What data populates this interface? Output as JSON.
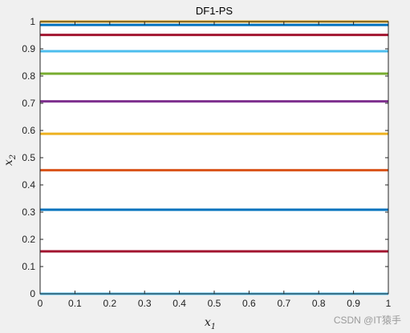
{
  "chart_data": {
    "type": "line",
    "title": "DF1-PS",
    "xlabel": {
      "base": "x",
      "sub": "1"
    },
    "ylabel": {
      "base": "x",
      "sub": "2"
    },
    "xlim": [
      0,
      1
    ],
    "ylim": [
      0,
      1
    ],
    "x_ticks": [
      "0",
      "0.1",
      "0.2",
      "0.3",
      "0.4",
      "0.5",
      "0.6",
      "0.7",
      "0.8",
      "0.9",
      "1"
    ],
    "y_ticks": [
      "0",
      "0.1",
      "0.2",
      "0.3",
      "0.4",
      "0.5",
      "0.6",
      "0.7",
      "0.8",
      "0.9",
      "1"
    ],
    "grid": false,
    "series": [
      {
        "x": [
          0,
          1
        ],
        "y": [
          1.0,
          1.0
        ],
        "color": "#EDB120"
      },
      {
        "x": [
          0,
          1
        ],
        "y": [
          0.988,
          0.988
        ],
        "color": "#0072BD"
      },
      {
        "x": [
          0,
          1
        ],
        "y": [
          0.951,
          0.951
        ],
        "color": "#A2142F"
      },
      {
        "x": [
          0,
          1
        ],
        "y": [
          0.891,
          0.891
        ],
        "color": "#4DBEEE"
      },
      {
        "x": [
          0,
          1
        ],
        "y": [
          0.809,
          0.809
        ],
        "color": "#77AC30"
      },
      {
        "x": [
          0,
          1
        ],
        "y": [
          0.707,
          0.707
        ],
        "color": "#7E2F8E"
      },
      {
        "x": [
          0,
          1
        ],
        "y": [
          0.588,
          0.588
        ],
        "color": "#EDB120"
      },
      {
        "x": [
          0,
          1
        ],
        "y": [
          0.454,
          0.454
        ],
        "color": "#D95319"
      },
      {
        "x": [
          0,
          1
        ],
        "y": [
          0.309,
          0.309
        ],
        "color": "#0072BD"
      },
      {
        "x": [
          0,
          1
        ],
        "y": [
          0.156,
          0.156
        ],
        "color": "#A2142F"
      },
      {
        "x": [
          0,
          1
        ],
        "y": [
          0.0,
          0.0
        ],
        "color": "#4DBEEE"
      }
    ]
  },
  "watermark": "CSDN @IT猿手"
}
